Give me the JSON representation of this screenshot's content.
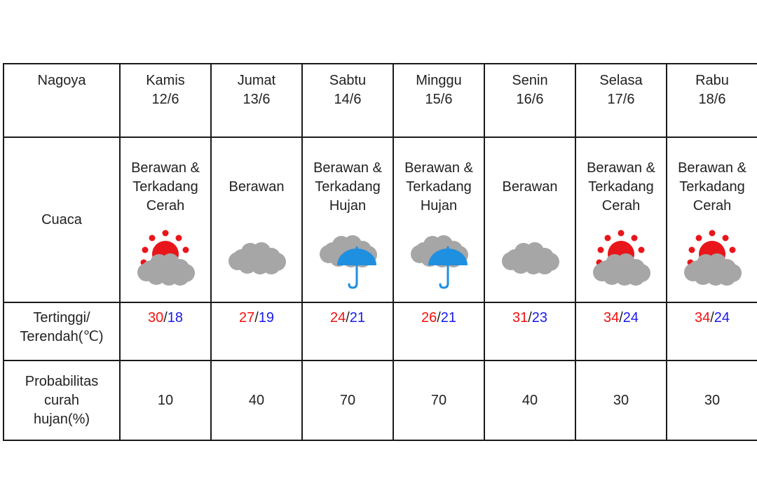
{
  "table": {
    "city": "Nagoya",
    "row_labels": {
      "weather": "Cuaca",
      "temp_line1": "Tertinggi/",
      "temp_line2": "Terendah(℃)",
      "rain_line1": "Probabilitas",
      "rain_line2": "curah",
      "rain_line3": "hujan(%)"
    },
    "days": [
      {
        "day": "Kamis",
        "date": "12/6",
        "cond": [
          "Berawan &",
          "Terkadang",
          "Cerah"
        ],
        "icon": "sun-cloud-icon",
        "high": "30",
        "low": "18",
        "rain": "10"
      },
      {
        "day": "Jumat",
        "date": "13/6",
        "cond": [
          "Berawan"
        ],
        "icon": "cloud-icon",
        "high": "27",
        "low": "19",
        "rain": "40"
      },
      {
        "day": "Sabtu",
        "date": "14/6",
        "cond": [
          "Berawan &",
          "Terkadang",
          "Hujan"
        ],
        "icon": "cloud-umbrella-icon",
        "high": "24",
        "low": "21",
        "rain": "70"
      },
      {
        "day": "Minggu",
        "date": "15/6",
        "cond": [
          "Berawan &",
          "Terkadang",
          "Hujan"
        ],
        "icon": "cloud-umbrella-icon",
        "high": "26",
        "low": "21",
        "rain": "70"
      },
      {
        "day": "Senin",
        "date": "16/6",
        "cond": [
          "Berawan"
        ],
        "icon": "cloud-icon",
        "high": "31",
        "low": "23",
        "rain": "40"
      },
      {
        "day": "Selasa",
        "date": "17/6",
        "cond": [
          "Berawan &",
          "Terkadang",
          "Cerah"
        ],
        "icon": "sun-cloud-icon",
        "high": "34",
        "low": "24",
        "rain": "30"
      },
      {
        "day": "Rabu",
        "date": "18/6",
        "cond": [
          "Berawan &",
          "Terkadang",
          "Cerah"
        ],
        "icon": "sun-cloud-icon",
        "high": "34",
        "low": "24",
        "rain": "30"
      }
    ],
    "colors": {
      "high": "#f31010",
      "low": "#1a1aee",
      "sun": "#e8161b",
      "cloud": "#a6a6a6",
      "umbrella": "#1f8fe0"
    }
  }
}
